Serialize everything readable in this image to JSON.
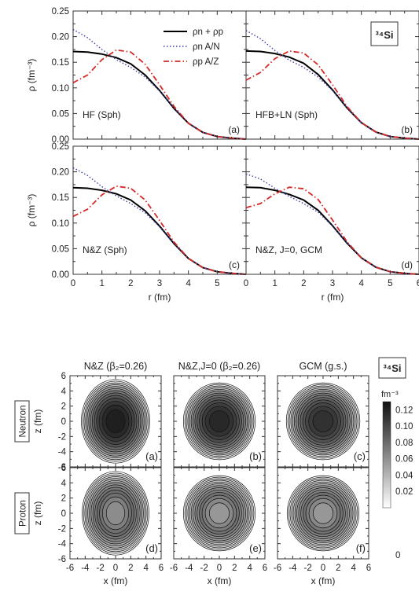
{
  "chart_data": [
    {
      "type": "line",
      "figure_part": "top",
      "xlabel": "r (fm)",
      "ylabel": "ρ (fm⁻³)",
      "xlim": [
        0,
        6
      ],
      "ylim": [
        0,
        0.25
      ],
      "xticks": [
        "0",
        "1",
        "2",
        "3",
        "4",
        "5",
        "6"
      ],
      "yticks": [
        "0.00",
        "0.05",
        "0.10",
        "0.15",
        "0.20",
        "0.25"
      ],
      "nucleus_label": "³⁴Si",
      "legend": {
        "placement": "top-right of panel (a)",
        "entries": [
          {
            "label": "ρn + ρp",
            "color": "#000000",
            "style": "solid"
          },
          {
            "label": "ρn A/N",
            "color": "#3a3fa8",
            "style": "dotted"
          },
          {
            "label": "ρp A/Z",
            "color": "#d42a2a",
            "style": "dash-dot"
          }
        ]
      },
      "panels": [
        {
          "letter": "(a)",
          "label": "HF (Sph)",
          "x": [
            0,
            0.5,
            1,
            1.5,
            2,
            2.5,
            3,
            3.5,
            4,
            4.5,
            5,
            5.5,
            6
          ],
          "series": [
            {
              "name": "ρn + ρp",
              "values": [
                0.171,
                0.17,
                0.166,
                0.159,
                0.147,
                0.125,
                0.095,
                0.06,
                0.031,
                0.013,
                0.005,
                0.002,
                0.0
              ]
            },
            {
              "name": "ρn A/N",
              "values": [
                0.214,
                0.198,
                0.175,
                0.155,
                0.14,
                0.121,
                0.094,
                0.06,
                0.031,
                0.013,
                0.005,
                0.002,
                0.0
              ]
            },
            {
              "name": "ρp A/Z",
              "values": [
                0.11,
                0.125,
                0.155,
                0.174,
                0.17,
                0.146,
                0.106,
                0.064,
                0.031,
                0.013,
                0.005,
                0.002,
                0.0
              ]
            }
          ]
        },
        {
          "letter": "(b)",
          "label": "HFB+LN (Sph)",
          "x": [
            0,
            0.5,
            1,
            1.5,
            2,
            2.5,
            3,
            3.5,
            4,
            4.5,
            5,
            5.5,
            6
          ],
          "series": [
            {
              "name": "ρn + ρp",
              "values": [
                0.172,
                0.171,
                0.167,
                0.16,
                0.148,
                0.126,
                0.096,
                0.061,
                0.032,
                0.014,
                0.005,
                0.002,
                0.0
              ]
            },
            {
              "name": "ρn A/N",
              "values": [
                0.212,
                0.196,
                0.173,
                0.154,
                0.14,
                0.121,
                0.095,
                0.061,
                0.032,
                0.014,
                0.005,
                0.002,
                0.0
              ]
            },
            {
              "name": "ρp A/Z",
              "values": [
                0.115,
                0.13,
                0.157,
                0.172,
                0.168,
                0.145,
                0.106,
                0.064,
                0.032,
                0.014,
                0.005,
                0.002,
                0.0
              ]
            }
          ]
        },
        {
          "letter": "(c)",
          "label": "N&Z (Sph)",
          "x": [
            0,
            0.5,
            1,
            1.5,
            2,
            2.5,
            3,
            3.5,
            4,
            4.5,
            5,
            5.5,
            6
          ],
          "series": [
            {
              "name": "ρn + ρp",
              "values": [
                0.169,
                0.168,
                0.164,
                0.157,
                0.145,
                0.124,
                0.094,
                0.06,
                0.031,
                0.013,
                0.005,
                0.002,
                0.0
              ]
            },
            {
              "name": "ρn A/N",
              "values": [
                0.208,
                0.193,
                0.171,
                0.153,
                0.138,
                0.12,
                0.093,
                0.06,
                0.031,
                0.013,
                0.005,
                0.002,
                0.0
              ]
            },
            {
              "name": "ρp A/Z",
              "values": [
                0.113,
                0.127,
                0.155,
                0.172,
                0.168,
                0.145,
                0.105,
                0.063,
                0.031,
                0.013,
                0.005,
                0.002,
                0.0
              ]
            }
          ]
        },
        {
          "letter": "(d)",
          "label": "N&Z, J=0, GCM",
          "x": [
            0,
            0.5,
            1,
            1.5,
            2,
            2.5,
            3,
            3.5,
            4,
            4.5,
            5,
            5.5,
            6
          ],
          "series": [
            {
              "name": "ρn + ρp",
              "values": [
                0.17,
                0.169,
                0.164,
                0.156,
                0.145,
                0.125,
                0.095,
                0.061,
                0.032,
                0.014,
                0.005,
                0.002,
                0.0
              ]
            },
            {
              "name": "ρn A/N",
              "values": [
                0.196,
                0.186,
                0.168,
                0.152,
                0.138,
                0.121,
                0.094,
                0.061,
                0.032,
                0.014,
                0.005,
                0.002,
                0.0
              ]
            },
            {
              "name": "ρp A/Z",
              "values": [
                0.13,
                0.138,
                0.157,
                0.17,
                0.167,
                0.146,
                0.106,
                0.064,
                0.032,
                0.014,
                0.005,
                0.002,
                0.0
              ]
            }
          ]
        }
      ]
    },
    {
      "type": "heatmap",
      "figure_part": "bottom",
      "xlabel": "x (fm)",
      "ylabel": "z (fm)",
      "xlim": [
        -6,
        6
      ],
      "ylim": [
        -6,
        6
      ],
      "xticks": [
        "-6",
        "-4",
        "-2",
        "0",
        "2",
        "4",
        "6"
      ],
      "yticks": [
        "-6",
        "-4",
        "-2",
        "0",
        "2",
        "4",
        "6"
      ],
      "columns": [
        "N&Z (β₂=0.26)",
        "N&Z,J=0 (β₂=0.26)",
        "GCM (g.s.)"
      ],
      "rows": [
        "Neutron",
        "Proton"
      ],
      "nucleus_label": "³⁴Si",
      "colorbar": {
        "unit": "fm⁻³",
        "ticks": [
          "0",
          "0.02",
          "0.04",
          "0.06",
          "0.08",
          "0.10",
          "0.12"
        ],
        "range": [
          0,
          0.13
        ]
      },
      "panels": [
        {
          "letter": "(a)",
          "row": "Neutron",
          "column": 0,
          "peak": 0.125,
          "semi_x_fm": 4.1,
          "semi_z_fm": 5.0,
          "central_dip": 0.0
        },
        {
          "letter": "(b)",
          "row": "Neutron",
          "column": 1,
          "peak": 0.12,
          "semi_x_fm": 4.3,
          "semi_z_fm": 4.6,
          "central_dip": 0.0
        },
        {
          "letter": "(c)",
          "row": "Neutron",
          "column": 2,
          "peak": 0.115,
          "semi_x_fm": 4.4,
          "semi_z_fm": 4.6,
          "central_dip": 0.0
        },
        {
          "letter": "(d)",
          "row": "Proton",
          "column": 0,
          "peak": 0.1,
          "semi_x_fm": 4.0,
          "semi_z_fm": 5.0,
          "central_dip": 0.35
        },
        {
          "letter": "(e)",
          "row": "Proton",
          "column": 1,
          "peak": 0.095,
          "semi_x_fm": 4.3,
          "semi_z_fm": 4.5,
          "central_dip": 0.4
        },
        {
          "letter": "(f)",
          "row": "Proton",
          "column": 2,
          "peak": 0.095,
          "semi_x_fm": 4.3,
          "semi_z_fm": 4.5,
          "central_dip": 0.4
        }
      ]
    }
  ]
}
